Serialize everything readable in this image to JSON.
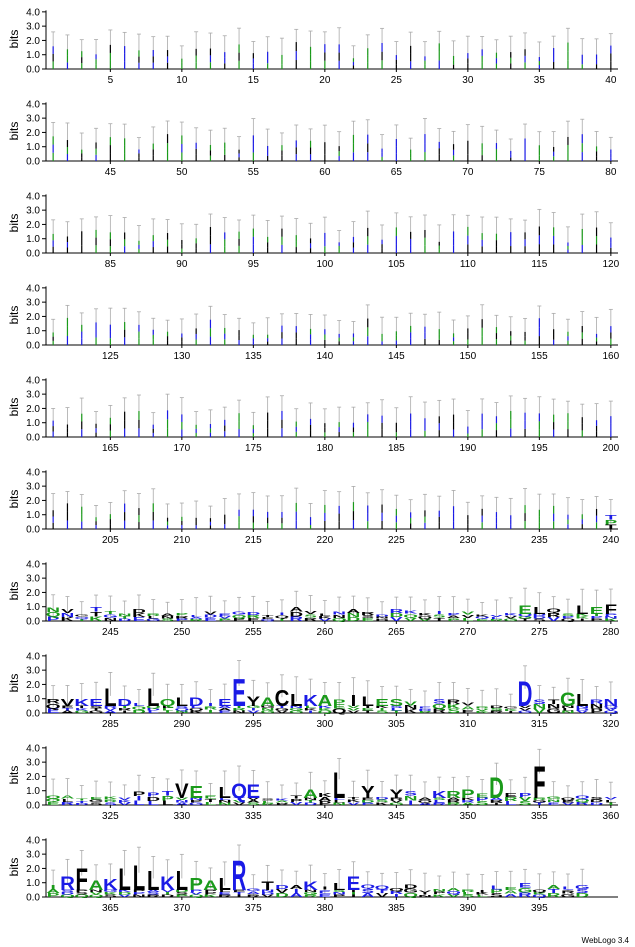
{
  "chart_data": {
    "type": "sequence-logo",
    "ylabel": "bits",
    "yticks": [
      "0.0",
      "1.0",
      "2.0",
      "3.0",
      "4.0"
    ],
    "ylim": [
      0,
      4.2
    ],
    "positions_per_row": 40,
    "rows": [
      {
        "ticks": [
          5,
          10,
          15,
          20,
          25,
          30,
          35,
          40
        ]
      },
      {
        "ticks": [
          45,
          50,
          55,
          60,
          65,
          70,
          75,
          80
        ]
      },
      {
        "ticks": [
          85,
          90,
          95,
          100,
          105,
          110,
          115,
          120
        ]
      },
      {
        "ticks": [
          125,
          130,
          135,
          140,
          145,
          150,
          155,
          160
        ]
      },
      {
        "ticks": [
          165,
          170,
          175,
          180,
          185,
          190,
          195,
          200
        ]
      },
      {
        "ticks": [
          205,
          210,
          215,
          220,
          225,
          230,
          235,
          240
        ]
      },
      {
        "ticks": [
          245,
          250,
          255,
          260,
          265,
          270,
          275,
          280
        ]
      },
      {
        "ticks": [
          285,
          290,
          295,
          300,
          305,
          310,
          315,
          320
        ]
      },
      {
        "ticks": [
          325,
          330,
          335,
          340,
          345,
          350,
          355,
          360
        ]
      },
      {
        "ticks": [
          365,
          370,
          375,
          380,
          385,
          390,
          395
        ]
      }
    ],
    "letter_colors": {
      "hydrophobic": "#000000",
      "polar": "#1a9a1a",
      "charged": "#1a1ae6"
    },
    "error_bar_color": "#aaaaaa",
    "prominent_letters": [
      {
        "pos": 274,
        "letter": "E",
        "bits": 0.6,
        "color": "#1a9a1a"
      },
      {
        "pos": 275,
        "letter": "L",
        "bits": 0.5,
        "color": "#000000"
      },
      {
        "pos": 278,
        "letter": "L",
        "bits": 0.6,
        "color": "#000000"
      },
      {
        "pos": 279,
        "letter": "E",
        "bits": 0.5,
        "color": "#1a9a1a"
      },
      {
        "pos": 280,
        "letter": "F",
        "bits": 0.7,
        "color": "#000000"
      },
      {
        "pos": 282,
        "letter": "V",
        "bits": 0.5,
        "color": "#000000"
      },
      {
        "pos": 283,
        "letter": "K",
        "bits": 0.5,
        "color": "#1a1ae6"
      },
      {
        "pos": 284,
        "letter": "E",
        "bits": 0.5,
        "color": "#1a1ae6"
      },
      {
        "pos": 285,
        "letter": "L",
        "bits": 1.3,
        "color": "#000000"
      },
      {
        "pos": 286,
        "letter": "D",
        "bits": 0.5,
        "color": "#1a1ae6"
      },
      {
        "pos": 288,
        "letter": "L",
        "bits": 1.3,
        "color": "#000000"
      },
      {
        "pos": 289,
        "letter": "Q",
        "bits": 0.5,
        "color": "#1a9a1a"
      },
      {
        "pos": 290,
        "letter": "L",
        "bits": 0.6,
        "color": "#000000"
      },
      {
        "pos": 291,
        "letter": "D",
        "bits": 0.6,
        "color": "#1a1ae6"
      },
      {
        "pos": 293,
        "letter": "E",
        "bits": 0.5,
        "color": "#1a1ae6"
      },
      {
        "pos": 294,
        "letter": "E",
        "bits": 2.0,
        "color": "#1a1ae6"
      },
      {
        "pos": 295,
        "letter": "Y",
        "bits": 0.7,
        "color": "#000000"
      },
      {
        "pos": 296,
        "letter": "A",
        "bits": 0.6,
        "color": "#1a9a1a"
      },
      {
        "pos": 297,
        "letter": "C",
        "bits": 1.2,
        "color": "#000000"
      },
      {
        "pos": 298,
        "letter": "L",
        "bits": 0.9,
        "color": "#000000"
      },
      {
        "pos": 299,
        "letter": "K",
        "bits": 0.8,
        "color": "#1a1ae6"
      },
      {
        "pos": 300,
        "letter": "A",
        "bits": 0.8,
        "color": "#1a9a1a"
      },
      {
        "pos": 302,
        "letter": "I",
        "bits": 0.8,
        "color": "#000000"
      },
      {
        "pos": 303,
        "letter": "L",
        "bits": 0.7,
        "color": "#000000"
      },
      {
        "pos": 304,
        "letter": "E",
        "bits": 0.5,
        "color": "#1a9a1a"
      },
      {
        "pos": 305,
        "letter": "S",
        "bits": 0.5,
        "color": "#1a9a1a"
      },
      {
        "pos": 314,
        "letter": "D",
        "bits": 1.8,
        "color": "#1a1ae6"
      },
      {
        "pos": 317,
        "letter": "G",
        "bits": 1.0,
        "color": "#1a9a1a"
      },
      {
        "pos": 318,
        "letter": "L",
        "bits": 0.9,
        "color": "#000000"
      },
      {
        "pos": 320,
        "letter": "N",
        "bits": 0.5,
        "color": "#1a1ae6"
      },
      {
        "pos": 330,
        "letter": "V",
        "bits": 1.1,
        "color": "#000000"
      },
      {
        "pos": 331,
        "letter": "E",
        "bits": 0.9,
        "color": "#1a9a1a"
      },
      {
        "pos": 333,
        "letter": "L",
        "bits": 0.8,
        "color": "#000000"
      },
      {
        "pos": 334,
        "letter": "Q",
        "bits": 1.1,
        "color": "#1a1ae6"
      },
      {
        "pos": 335,
        "letter": "E",
        "bits": 1.0,
        "color": "#1a1ae6"
      },
      {
        "pos": 339,
        "letter": "A",
        "bits": 0.6,
        "color": "#1a9a1a"
      },
      {
        "pos": 341,
        "letter": "L",
        "bits": 1.9,
        "color": "#000000"
      },
      {
        "pos": 343,
        "letter": "Y",
        "bits": 0.9,
        "color": "#000000"
      },
      {
        "pos": 345,
        "letter": "Y",
        "bits": 0.6,
        "color": "#000000"
      },
      {
        "pos": 348,
        "letter": "K",
        "bits": 0.5,
        "color": "#1a1ae6"
      },
      {
        "pos": 349,
        "letter": "R",
        "bits": 0.5,
        "color": "#1a9a1a"
      },
      {
        "pos": 350,
        "letter": "P",
        "bits": 0.6,
        "color": "#1a9a1a"
      },
      {
        "pos": 352,
        "letter": "D",
        "bits": 1.5,
        "color": "#1a9a1a"
      },
      {
        "pos": 355,
        "letter": "F",
        "bits": 2.3,
        "color": "#000000"
      },
      {
        "pos": 362,
        "letter": "R",
        "bits": 1.0,
        "color": "#1a1ae6"
      },
      {
        "pos": 363,
        "letter": "F",
        "bits": 1.6,
        "color": "#000000"
      },
      {
        "pos": 364,
        "letter": "A",
        "bits": 0.7,
        "color": "#1a9a1a"
      },
      {
        "pos": 365,
        "letter": "K",
        "bits": 0.8,
        "color": "#1a1ae6"
      },
      {
        "pos": 366,
        "letter": "L",
        "bits": 1.6,
        "color": "#000000"
      },
      {
        "pos": 367,
        "letter": "L",
        "bits": 1.8,
        "color": "#000000"
      },
      {
        "pos": 368,
        "letter": "L",
        "bits": 1.4,
        "color": "#000000"
      },
      {
        "pos": 369,
        "letter": "K",
        "bits": 1.0,
        "color": "#1a1ae6"
      },
      {
        "pos": 370,
        "letter": "L",
        "bits": 1.4,
        "color": "#000000"
      },
      {
        "pos": 371,
        "letter": "P",
        "bits": 0.9,
        "color": "#1a9a1a"
      },
      {
        "pos": 372,
        "letter": "A",
        "bits": 0.7,
        "color": "#1a9a1a"
      },
      {
        "pos": 373,
        "letter": "L",
        "bits": 0.9,
        "color": "#000000"
      },
      {
        "pos": 374,
        "letter": "R",
        "bits": 2.2,
        "color": "#1a1ae6"
      },
      {
        "pos": 376,
        "letter": "T",
        "bits": 0.6,
        "color": "#000000"
      },
      {
        "pos": 379,
        "letter": "K",
        "bits": 0.6,
        "color": "#1a1ae6"
      },
      {
        "pos": 381,
        "letter": "L",
        "bits": 0.5,
        "color": "#000000"
      },
      {
        "pos": 382,
        "letter": "E",
        "bits": 1.0,
        "color": "#1a1ae6"
      }
    ]
  },
  "footer": {
    "text": "WebLogo 3.4"
  }
}
